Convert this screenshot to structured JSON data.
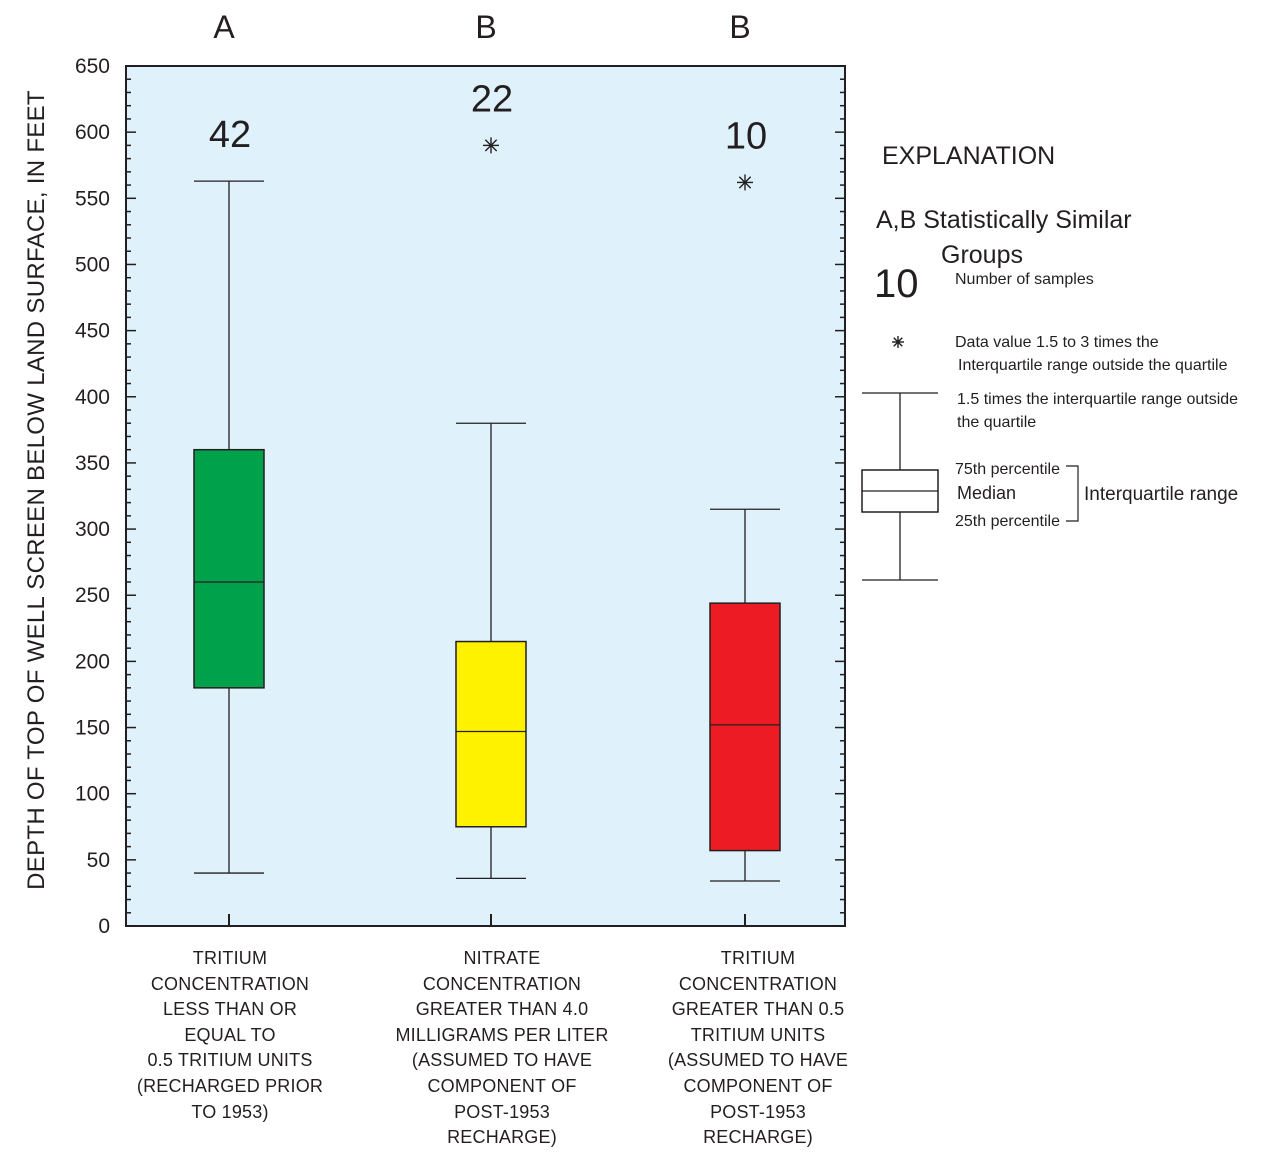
{
  "chart_data": {
    "type": "box",
    "ylabel": "DEPTH OF TOP OF WELL SCREEN BELOW LAND SURFACE, IN FEET",
    "ylim": [
      0,
      650
    ],
    "yticks": [
      0,
      50,
      100,
      150,
      200,
      250,
      300,
      350,
      400,
      450,
      500,
      550,
      600,
      650
    ],
    "plot_background": "#dff1fa",
    "boxes": [
      {
        "group": "A",
        "n": "42",
        "label": [
          "TRITIUM",
          "CONCENTRATION",
          "LESS THAN OR",
          "EQUAL TO",
          "0.5 TRITIUM UNITS",
          "(RECHARGED PRIOR",
          "TO 1953)"
        ],
        "color": "#00a14b",
        "whisker_low": 40,
        "q1": 180,
        "median": 260,
        "q3": 360,
        "whisker_high": 563,
        "outliers": []
      },
      {
        "group": "B",
        "n": "22",
        "label": [
          "NITRATE",
          "CONCENTRATION",
          "GREATER  THAN 4.0",
          "MILLIGRAMS PER LITER",
          "(ASSUMED TO HAVE",
          "COMPONENT OF",
          "POST-1953",
          "RECHARGE)"
        ],
        "color": "#fff200",
        "whisker_low": 36,
        "q1": 75,
        "median": 147,
        "q3": 215,
        "whisker_high": 380,
        "outliers": [
          590
        ]
      },
      {
        "group": "B",
        "n": "10",
        "label": [
          "TRITIUM",
          "CONCENTRATION",
          "GREATER  THAN 0.5",
          "TRITIUM UNITS",
          "(ASSUMED TO HAVE",
          "COMPONENT OF",
          "POST-1953",
          "RECHARGE)"
        ],
        "color": "#ed1c24",
        "whisker_low": 34,
        "q1": 57,
        "median": 152,
        "q3": 244,
        "whisker_high": 315,
        "outliers": [
          562
        ]
      }
    ]
  },
  "explanation": {
    "title": "EXPLANATION",
    "groups_line1": "A,B Statistically Similar",
    "groups_line2": "Groups",
    "sample_example": "10",
    "sample_text": "Number of samples",
    "outlier_line1": "Data value 1.5 to 3 times the",
    "outlier_line2": "Interquartile range outside the quartile",
    "whisker_line1": "1.5 times the interquartile range outside",
    "whisker_line2": "the quartile",
    "p75": "75th percentile",
    "median": "Median",
    "p25": "25th percentile",
    "iqr": "Interquartile range"
  }
}
